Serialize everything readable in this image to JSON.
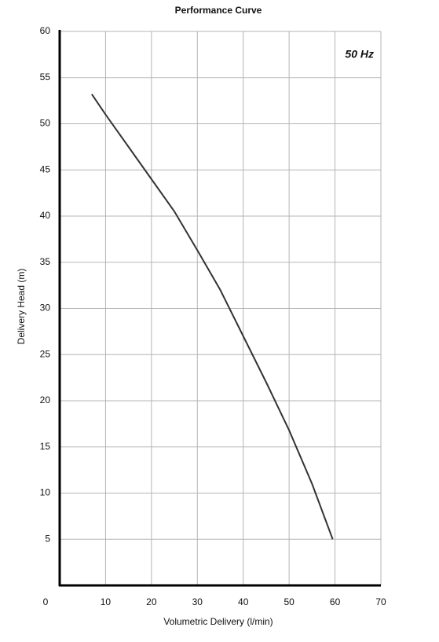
{
  "chart_data": {
    "type": "line",
    "title": "Performance Curve",
    "x_label": "Volumetric Delivery (l/min)",
    "y_label": "Delivery Head (m)",
    "annotation": "50 Hz",
    "series": [
      {
        "name": "Performance",
        "color": "#333333",
        "x": [
          7,
          10,
          15,
          20,
          25,
          30,
          35,
          40,
          45,
          50,
          55,
          59.5
        ],
        "values": [
          53.2,
          51,
          47.5,
          44,
          40.5,
          36.3,
          32,
          27,
          22,
          16.8,
          11,
          5
        ]
      }
    ],
    "xlim": [
      0,
      70
    ],
    "xticks": [
      0,
      10,
      20,
      30,
      40,
      50,
      60,
      70
    ],
    "ylim": [
      0,
      60
    ],
    "yticks": [
      5,
      10,
      15,
      20,
      25,
      30,
      35,
      40,
      45,
      50,
      55,
      60
    ],
    "grid": true
  }
}
